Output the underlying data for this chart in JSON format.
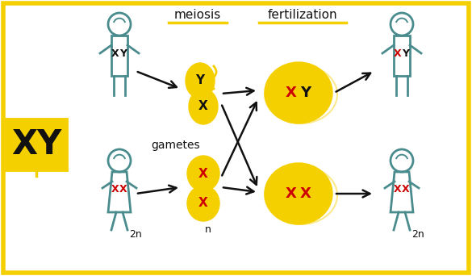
{
  "bg_color": "#ffffff",
  "border_color": "#f5d000",
  "teal": "#4a8c8e",
  "yellow": "#f5d000",
  "black": "#111111",
  "red": "#cc0000",
  "meiosis": "meiosis",
  "fertilization": "fertilization",
  "gametes": "gametes",
  "n_label": "n",
  "twon_label": "2n",
  "xy_badge": "XY",
  "fig_w": 5.85,
  "fig_h": 3.42,
  "dpi": 100
}
